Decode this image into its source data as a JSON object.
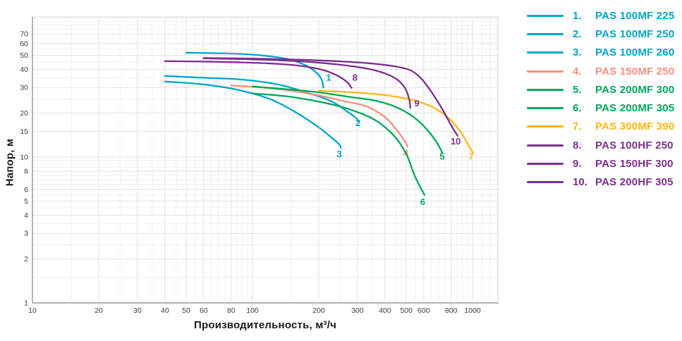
{
  "chart_data": {
    "type": "line",
    "title": "",
    "xlabel": "Производительность, м³/ч",
    "ylabel": "Напор, м",
    "x_scale": "log",
    "y_scale": "log",
    "x_range": [
      10,
      1300
    ],
    "y_range": [
      1,
      91
    ],
    "grid": "on",
    "legend_position": "right",
    "x_tick_labels": [
      10,
      20,
      30,
      40,
      50,
      60,
      80,
      100,
      200,
      300,
      400,
      500,
      600,
      800,
      1000
    ],
    "y_tick_labels": [
      1,
      2,
      3,
      4,
      5,
      6,
      8,
      10,
      15,
      20,
      30,
      40,
      50,
      60,
      70
    ],
    "series": [
      {
        "num": "1.",
        "name": "PAS 100MF 225",
        "color": "#00a6cb",
        "points": [
          [
            50,
            52
          ],
          [
            80,
            51.3
          ],
          [
            110,
            49.8
          ],
          [
            145,
            47
          ],
          [
            175,
            42.5
          ],
          [
            195,
            38
          ],
          [
            206,
            34
          ],
          [
            210,
            30
          ]
        ],
        "label": "1",
        "label_at": [
          222,
          33.5
        ]
      },
      {
        "num": "2.",
        "name": "PAS 100MF 250",
        "color": "#00a6cb",
        "points": [
          [
            40,
            36
          ],
          [
            60,
            35
          ],
          [
            90,
            34
          ],
          [
            130,
            31.5
          ],
          [
            180,
            27.5
          ],
          [
            230,
            24
          ],
          [
            270,
            20.5
          ],
          [
            295,
            18.6
          ],
          [
            302,
            17.6
          ]
        ],
        "label": "2",
        "label_at": [
          302,
          16.3
        ]
      },
      {
        "num": "3.",
        "name": "PAS 100MF 260",
        "color": "#00a6cb",
        "points": [
          [
            40,
            33
          ],
          [
            60,
            31.5
          ],
          [
            85,
            29
          ],
          [
            120,
            25
          ],
          [
            160,
            20
          ],
          [
            200,
            16
          ],
          [
            230,
            13.5
          ],
          [
            248,
            12.2
          ],
          [
            252,
            11.6
          ]
        ],
        "label": "3",
        "label_at": [
          248,
          10.0
        ]
      },
      {
        "num": "4.",
        "name": "PAS 150MF 250",
        "color": "#f7907f",
        "points": [
          [
            80,
            31
          ],
          [
            110,
            30
          ],
          [
            150,
            28.5
          ],
          [
            200,
            26.5
          ],
          [
            260,
            24.2
          ],
          [
            330,
            22.3
          ],
          [
            400,
            18.8
          ],
          [
            450,
            15.5
          ],
          [
            490,
            13
          ],
          [
            507,
            11.8
          ]
        ],
        "label": "4",
        "label_at": [
          498,
          10.1
        ]
      },
      {
        "num": "5.",
        "name": "PAS 200MF 300",
        "color": "#00a859",
        "points": [
          [
            100,
            30.5
          ],
          [
            140,
            29.3
          ],
          [
            200,
            27.8
          ],
          [
            270,
            26
          ],
          [
            360,
            24.4
          ],
          [
            450,
            22
          ],
          [
            540,
            18.8
          ],
          [
            620,
            15.5
          ],
          [
            690,
            12.5
          ],
          [
            729,
            10.7
          ]
        ],
        "label": "5",
        "label_at": [
          728,
          9.6
        ]
      },
      {
        "num": "6.",
        "name": "PAS 200MF 305",
        "color": "#00a859",
        "points": [
          [
            100,
            27.3
          ],
          [
            140,
            26.2
          ],
          [
            200,
            24
          ],
          [
            270,
            21.5
          ],
          [
            360,
            18
          ],
          [
            440,
            14
          ],
          [
            500,
            10.5
          ],
          [
            545,
            7.5
          ],
          [
            580,
            6.2
          ],
          [
            605,
            5.5
          ]
        ],
        "label": "6",
        "label_at": [
          594,
          4.7
        ]
      },
      {
        "num": "7.",
        "name": "PAS 300MF 390",
        "color": "#fcb813",
        "points": [
          [
            200,
            28.5
          ],
          [
            260,
            28
          ],
          [
            340,
            27.3
          ],
          [
            430,
            26.2
          ],
          [
            540,
            24.5
          ],
          [
            660,
            22
          ],
          [
            780,
            18.5
          ],
          [
            880,
            15
          ],
          [
            960,
            12
          ],
          [
            1005,
            10.7
          ]
        ],
        "label": "7",
        "label_at": [
          985,
          9.6
        ]
      },
      {
        "num": "8.",
        "name": "PAS 100HF 250",
        "color": "#7b2f8e",
        "points": [
          [
            40,
            45.5
          ],
          [
            60,
            45.2
          ],
          [
            90,
            44.6
          ],
          [
            130,
            43.6
          ],
          [
            170,
            42
          ],
          [
            210,
            39.5
          ],
          [
            245,
            36
          ],
          [
            270,
            32.5
          ],
          [
            282,
            29.8
          ]
        ],
        "label": "8",
        "label_at": [
          292,
          33.5
        ]
      },
      {
        "num": "9.",
        "name": "PAS 150HF 300",
        "color": "#7b2f8e",
        "points": [
          [
            60,
            47.5
          ],
          [
            90,
            47
          ],
          [
            130,
            46.2
          ],
          [
            180,
            45
          ],
          [
            250,
            43
          ],
          [
            330,
            40.5
          ],
          [
            400,
            37.5
          ],
          [
            455,
            34
          ],
          [
            495,
            29.5
          ],
          [
            515,
            25
          ],
          [
            522,
            21.8
          ]
        ],
        "label": "9",
        "label_at": [
          558,
          22.3
        ]
      },
      {
        "num": "10.",
        "name": "PAS 200HF 305",
        "color": "#7b2f8e",
        "points": [
          [
            60,
            47.8
          ],
          [
            100,
            47.4
          ],
          [
            160,
            46.6
          ],
          [
            240,
            45.5
          ],
          [
            340,
            44
          ],
          [
            440,
            42
          ],
          [
            520,
            39.5
          ],
          [
            580,
            35
          ],
          [
            640,
            29
          ],
          [
            720,
            22
          ],
          [
            800,
            16.5
          ],
          [
            855,
            14
          ]
        ],
        "label": "10",
        "label_at": [
          838,
          12.2
        ]
      }
    ]
  },
  "style": {
    "grid_minor_color": "#efefef",
    "grid_major_color": "#e2e2e2",
    "border_color": "#d7d7d7",
    "axis_line_color": "#9b9b9b",
    "tick_label_color": "#3c3c3c"
  }
}
